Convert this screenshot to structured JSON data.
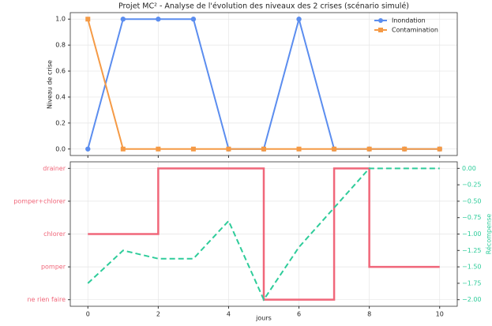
{
  "chart_data": [
    {
      "type": "line",
      "title": "Projet MC² - Analyse de l'évolution des niveaux des 2 crises (scénario simulé)",
      "y_label": "Niveau de crise",
      "x": [
        0,
        1,
        2,
        3,
        4,
        5,
        6,
        7,
        8,
        9,
        10
      ],
      "series": [
        {
          "name": "Inondation",
          "color": "#5b8def",
          "marker": "circle",
          "values": [
            0,
            1,
            1,
            1,
            0,
            0,
            1,
            0,
            0,
            0,
            0
          ]
        },
        {
          "name": "Contamination",
          "color": "#f59a45",
          "marker": "square",
          "values": [
            1,
            0,
            0,
            0,
            0,
            0,
            0,
            0,
            0,
            0,
            0
          ]
        }
      ],
      "xlim": [
        -0.5,
        10.5
      ],
      "ylim": [
        -0.05,
        1.05
      ],
      "xticks": [
        0,
        2,
        4,
        6,
        8,
        10
      ],
      "yticks": [
        {
          "value": 0,
          "label": "0.0"
        },
        {
          "value": 0.2,
          "label": "0.2"
        },
        {
          "value": 0.4,
          "label": "0.4"
        },
        {
          "value": 0.6,
          "label": "0.6"
        },
        {
          "value": 0.8,
          "label": "0.8"
        },
        {
          "value": 1,
          "label": "1.0"
        }
      ],
      "grid": true,
      "legend": "upper-right"
    },
    {
      "type": "step",
      "x_label": "jours",
      "y2_label": "Récompense",
      "x": [
        0,
        1,
        2,
        3,
        4,
        5,
        6,
        7,
        8,
        9,
        10
      ],
      "series": [
        {
          "color": "#f0677a",
          "drawstyle": "steps-post",
          "values": [
            2,
            2,
            4,
            4,
            4,
            0,
            0,
            4,
            1,
            1,
            1
          ]
        },
        {
          "color": "#2ecc9a",
          "axis": "y2",
          "linestyle": "dashed",
          "values": [
            -1.75,
            -1.25,
            -1.375,
            -1.375,
            -0.8,
            -2.0,
            -1.2,
            -0.6,
            0,
            0,
            0
          ]
        }
      ],
      "xlim": [
        -0.5,
        10.5
      ],
      "ylim": [
        -0.2,
        4.2
      ],
      "y2lim": [
        -2.1,
        0.1
      ],
      "xticks": [
        0,
        2,
        4,
        6,
        8,
        10
      ],
      "yticks": [
        {
          "value": 0,
          "label": "ne rien faire"
        },
        {
          "value": 1,
          "label": "pomper"
        },
        {
          "value": 2,
          "label": "chlorer"
        },
        {
          "value": 3,
          "label": "pomper+chlorer"
        },
        {
          "value": 4,
          "label": "drainer"
        }
      ],
      "y2ticks": [
        {
          "value": 0,
          "label": "0.00"
        },
        {
          "value": -0.25,
          "label": "−0.25"
        },
        {
          "value": -0.5,
          "label": "−0.50"
        },
        {
          "value": -0.75,
          "label": "−0.75"
        },
        {
          "value": -1,
          "label": "−1.00"
        },
        {
          "value": -1.25,
          "label": "−1.25"
        },
        {
          "value": -1.5,
          "label": "−1.50"
        },
        {
          "value": -1.75,
          "label": "−1.75"
        },
        {
          "value": -2,
          "label": "−2.00"
        }
      ],
      "ytick_color": "#f0677a",
      "y2tick_color": "#2ecc9a",
      "grid": true
    }
  ]
}
